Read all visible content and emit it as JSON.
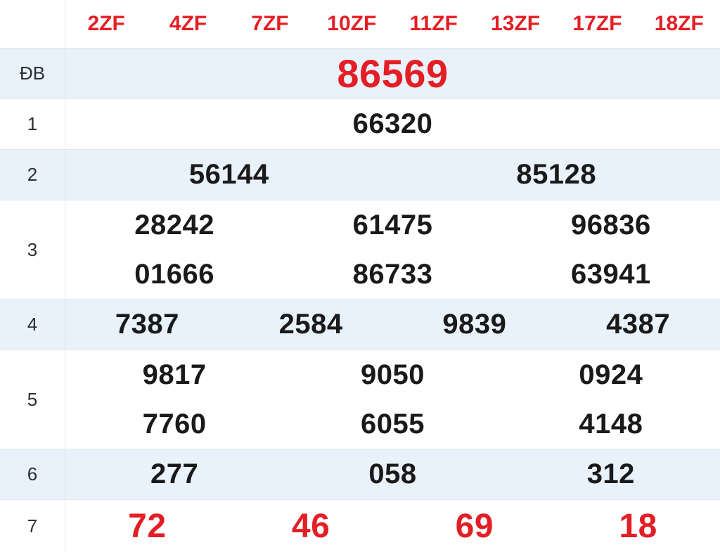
{
  "table": {
    "header": {
      "columns": [
        "2ZF",
        "4ZF",
        "7ZF",
        "10ZF",
        "11ZF",
        "13ZF",
        "17ZF",
        "18ZF"
      ]
    },
    "rows": [
      {
        "label": "ĐB",
        "style": "special",
        "shaded": true,
        "lines": [
          [
            "86569"
          ]
        ]
      },
      {
        "label": "1",
        "style": "",
        "shaded": false,
        "lines": [
          [
            "66320"
          ]
        ]
      },
      {
        "label": "2",
        "style": "",
        "shaded": true,
        "lines": [
          [
            "56144",
            "85128"
          ]
        ]
      },
      {
        "label": "3",
        "style": "",
        "shaded": false,
        "lines": [
          [
            "28242",
            "61475",
            "96836"
          ],
          [
            "01666",
            "86733",
            "63941"
          ]
        ]
      },
      {
        "label": "4",
        "style": "",
        "shaded": true,
        "lines": [
          [
            "7387",
            "2584",
            "9839",
            "4387"
          ]
        ]
      },
      {
        "label": "5",
        "style": "",
        "shaded": false,
        "lines": [
          [
            "9817",
            "9050",
            "0924"
          ],
          [
            "7760",
            "6055",
            "4148"
          ]
        ]
      },
      {
        "label": "6",
        "style": "",
        "shaded": true,
        "lines": [
          [
            "277",
            "058",
            "312"
          ]
        ]
      },
      {
        "label": "7",
        "style": "red-large",
        "shaded": false,
        "lines": [
          [
            "72",
            "46",
            "69",
            "18"
          ]
        ]
      }
    ],
    "colors": {
      "accent_red": "#e41e25",
      "shaded_row_bg": "#e9f2fa",
      "border": "#e4e7ea",
      "text_dark": "#1a1a1a"
    }
  }
}
